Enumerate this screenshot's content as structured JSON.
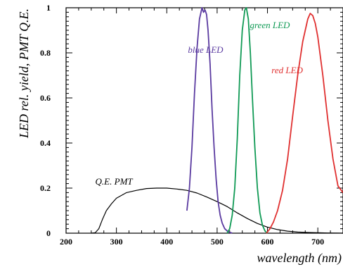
{
  "chart_data": {
    "type": "line",
    "xlabel": "wavelength (nm)",
    "ylabel": "LED rel. yield, PMT Q.E.",
    "xlim": [
      200,
      750
    ],
    "ylim": [
      0,
      1
    ],
    "x_ticks": [
      200,
      300,
      400,
      500,
      600,
      700
    ],
    "y_ticks": [
      0,
      0.2,
      0.4,
      0.6,
      0.8,
      1
    ],
    "x_tick_labels": [
      "200",
      "300",
      "400",
      "500",
      "600",
      "700"
    ],
    "y_tick_labels": [
      "0",
      "0.2",
      "0.4",
      "0.6",
      "0.8",
      "1"
    ],
    "grid": false,
    "annotations": [
      {
        "text": "blue LED",
        "x": 442,
        "y": 0.8,
        "color": "#5a3aa0"
      },
      {
        "text": "green LED",
        "x": 565,
        "y": 0.91,
        "color": "#109a55"
      },
      {
        "text": "red LED",
        "x": 608,
        "y": 0.71,
        "color": "#e03030"
      },
      {
        "text": "Q.E. PMT",
        "x": 258,
        "y": 0.215,
        "color": "#000000"
      }
    ],
    "series": [
      {
        "color": "#000000",
        "x": [
          250,
          258,
          265,
          272,
          280,
          290,
          300,
          320,
          340,
          360,
          380,
          400,
          420,
          440,
          460,
          480,
          500,
          520,
          540,
          560,
          580,
          600,
          620,
          640,
          660,
          680,
          700,
          720,
          740,
          750
        ],
        "y": [
          0.0,
          0.002,
          0.02,
          0.06,
          0.1,
          0.13,
          0.155,
          0.18,
          0.19,
          0.198,
          0.2,
          0.2,
          0.196,
          0.19,
          0.178,
          0.16,
          0.14,
          0.118,
          0.09,
          0.065,
          0.043,
          0.027,
          0.016,
          0.009,
          0.005,
          0.003,
          0.002,
          0.001,
          0.0005,
          0.0
        ]
      },
      {
        "color": "#5a3aa0",
        "x": [
          440,
          445,
          450,
          455,
          460,
          465,
          470,
          473,
          476,
          479,
          482,
          486,
          490,
          494,
          498,
          502,
          506,
          510,
          515,
          520,
          525,
          530
        ],
        "y": [
          0.1,
          0.2,
          0.38,
          0.62,
          0.82,
          0.95,
          1.0,
          0.98,
          0.99,
          0.97,
          0.9,
          0.75,
          0.55,
          0.38,
          0.24,
          0.14,
          0.08,
          0.045,
          0.02,
          0.01,
          0.004,
          0.0
        ]
      },
      {
        "color": "#109a55",
        "x": [
          520,
          525,
          530,
          535,
          540,
          545,
          550,
          555,
          558,
          562,
          566,
          570,
          575,
          580,
          585,
          590,
          595,
          600
        ],
        "y": [
          0.0,
          0.02,
          0.08,
          0.2,
          0.42,
          0.7,
          0.9,
          0.99,
          1.0,
          0.95,
          0.8,
          0.6,
          0.38,
          0.2,
          0.09,
          0.035,
          0.01,
          0.0
        ]
      },
      {
        "color": "#e03030",
        "x": [
          598,
          605,
          612,
          620,
          630,
          640,
          650,
          660,
          670,
          680,
          685,
          690,
          695,
          700,
          710,
          720,
          730,
          740,
          750
        ],
        "y": [
          0.0,
          0.02,
          0.05,
          0.1,
          0.19,
          0.33,
          0.52,
          0.7,
          0.85,
          0.95,
          0.975,
          0.965,
          0.93,
          0.87,
          0.7,
          0.5,
          0.33,
          0.21,
          0.18
        ]
      }
    ]
  }
}
